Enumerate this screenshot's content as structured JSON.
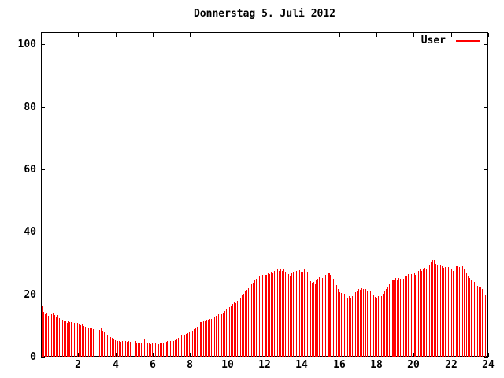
{
  "title": "Donnerstag 5. Juli 2012",
  "legend": {
    "label": "User"
  },
  "axes": {
    "y_ticks": [
      0,
      20,
      40,
      60,
      80,
      100
    ],
    "x_ticks": [
      2,
      4,
      6,
      8,
      10,
      12,
      14,
      16,
      18,
      20,
      22,
      24
    ]
  },
  "colors": {
    "bar": "#ff0000",
    "axis": "#000000",
    "background": "#ffffff"
  },
  "chart_data": {
    "type": "bar",
    "title": "Donnerstag 5. Juli 2012",
    "series_name": "User",
    "xlabel": "",
    "ylabel": "",
    "xlim": [
      0,
      24
    ],
    "ylim": [
      0,
      100
    ],
    "x_unit": "hour of day",
    "sample_interval_minutes": 5,
    "bar_color": "#ff0000",
    "grid": false,
    "legend_position": "top-right",
    "double_width_indices": [
      60,
      102,
      144,
      185,
      226,
      267
    ],
    "values": [
      16.2,
      14.3,
      13.7,
      13.8,
      13.1,
      13.9,
      13.6,
      13.9,
      13.4,
      12.9,
      13.3,
      12.4,
      12.2,
      11.8,
      11.4,
      11.6,
      10.9,
      11.3,
      11.0,
      11.2,
      null,
      10.9,
      10.5,
      10.8,
      10.6,
      10.2,
      10.4,
      9.9,
      9.6,
      9.8,
      9.3,
      9.0,
      9.2,
      8.7,
      8.4,
      null,
      8.2,
      8.5,
      9.1,
      8.3,
      7.9,
      7.5,
      7.1,
      6.7,
      6.3,
      6.0,
      5.7,
      5.4,
      5.2,
      5.0,
      5.1,
      4.9,
      5.0,
      4.8,
      5.0,
      4.9,
      5.1,
      4.8,
      5.0,
      null,
      5.0,
      4.6,
      4.4,
      4.6,
      4.3,
      4.5,
      5.6,
      4.4,
      4.2,
      4.4,
      4.1,
      4.3,
      4.0,
      4.2,
      4.5,
      4.1,
      4.3,
      4.6,
      4.4,
      4.7,
      4.9,
      5.1,
      4.8,
      5.0,
      5.2,
      5.0,
      5.3,
      5.6,
      6.0,
      6.4,
      6.7,
      8.0,
      7.0,
      7.3,
      7.6,
      7.9,
      8.1,
      8.4,
      8.7,
      9.0,
      9.5,
      null,
      11.0,
      11.2,
      11.4,
      11.6,
      11.8,
      11.9,
      12.0,
      12.2,
      12.5,
      12.8,
      13.0,
      13.3,
      13.6,
      13.9,
      13.7,
      14.2,
      14.6,
      15.0,
      15.5,
      16.0,
      16.5,
      17.0,
      17.5,
      17.2,
      18.0,
      18.5,
      19.0,
      19.6,
      20.2,
      20.8,
      21.4,
      22.0,
      22.6,
      23.2,
      23.8,
      24.4,
      25.0,
      25.5,
      26.0,
      26.4,
      26.1,
      null,
      26.3,
      26.0,
      26.8,
      26.4,
      27.2,
      26.7,
      27.6,
      27.0,
      27.9,
      27.4,
      28.2,
      27.6,
      27.9,
      27.2,
      27.6,
      26.4,
      26.0,
      26.6,
      27.1,
      26.7,
      27.4,
      27.0,
      27.7,
      27.3,
      27.3,
      27.9,
      29.0,
      27.2,
      25.4,
      24.2,
      23.6,
      24.0,
      23.5,
      24.4,
      24.9,
      25.5,
      25.9,
      25.3,
      25.8,
      26.2,
      null,
      26.7,
      26.1,
      25.6,
      25.0,
      24.4,
      23.0,
      21.8,
      20.6,
      20.3,
      20.7,
      20.1,
      19.4,
      19.0,
      19.3,
      18.9,
      19.5,
      20.0,
      20.7,
      21.3,
      21.8,
      21.4,
      22.0,
      21.6,
      22.2,
      21.7,
      21.2,
      20.8,
      21.1,
      20.5,
      19.8,
      19.2,
      19.0,
      19.4,
      19.8,
      19.5,
      20.1,
      20.8,
      21.6,
      22.4,
      23.2,
      null,
      24.4,
      24.8,
      25.1,
      24.7,
      25.3,
      24.9,
      25.5,
      25.0,
      25.6,
      26.0,
      26.4,
      26.0,
      26.5,
      26.2,
      26.6,
      26.3,
      26.9,
      27.4,
      27.9,
      27.5,
      28.2,
      28.6,
      28.3,
      29.0,
      29.6,
      30.3,
      31.0,
      30.9,
      29.7,
      29.2,
      28.8,
      29.3,
      28.9,
      28.5,
      28.8,
      28.4,
      28.7,
      28.3,
      27.9,
      27.5,
      null,
      29.0,
      28.4,
      28.8,
      29.4,
      28.9,
      28.2,
      27.5,
      26.8,
      26.0,
      25.2,
      24.4,
      23.6,
      23.9,
      23.2,
      22.6,
      22.2,
      22.4,
      21.8,
      20.4,
      19.6,
      19.2
    ]
  }
}
